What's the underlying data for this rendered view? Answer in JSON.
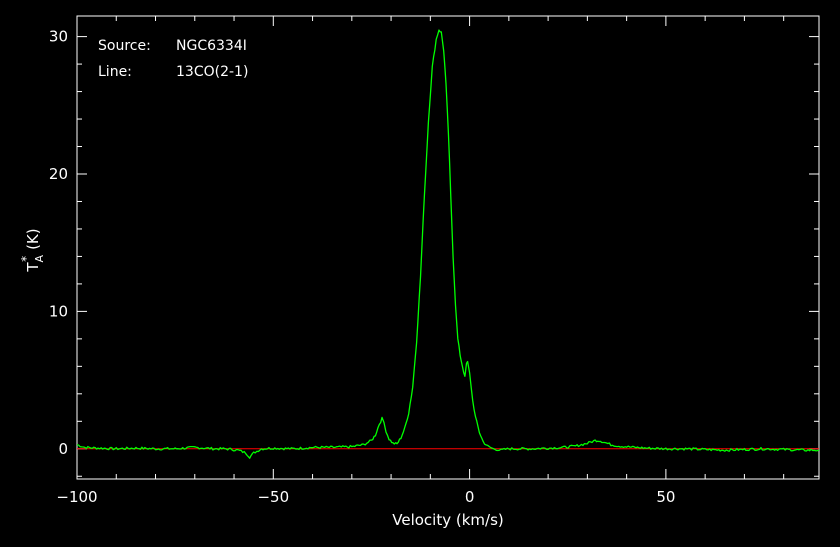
{
  "info": {
    "source_label": "Source:",
    "source_value": "NGC6334I",
    "line_label": "Line:",
    "line_value": "13CO(2-1)"
  },
  "colors": {
    "background": "#000000",
    "axes": "#ffffff",
    "spectrum": "#00ff00",
    "baseline": "#ff0000"
  },
  "chart_data": {
    "type": "line",
    "xlabel": "Velocity (km/s)",
    "ylabel_main": "T",
    "ylabel_sup": "*",
    "ylabel_sub": "A",
    "ylabel_unit": "(K)",
    "xlim": [
      -100,
      89
    ],
    "ylim": [
      -2.2,
      31.5
    ],
    "xticks": [
      -100,
      -50,
      0,
      50
    ],
    "xtick_labels": [
      "−100",
      "−50",
      "0",
      "50"
    ],
    "yticks": [
      0,
      10,
      20,
      30
    ],
    "ytick_labels": [
      "0",
      "10",
      "20",
      "30"
    ],
    "grid": false,
    "series": [
      {
        "x": [
          -100,
          -98,
          -95,
          -90,
          -85,
          -80,
          -75,
          -70,
          -65,
          -62,
          -59,
          -57,
          -56,
          -55,
          -53,
          -50,
          -45,
          -40,
          -35,
          -30,
          -27,
          -25,
          -24,
          -23,
          -22.3,
          -21.8,
          -21.3,
          -20.5,
          -19.5,
          -18.5,
          -17.5,
          -16.5,
          -15.5,
          -14.5,
          -13.5,
          -12.5,
          -11.5,
          -10.5,
          -9.5,
          -8.5,
          -7.8,
          -7.2,
          -6.6,
          -6,
          -5.4,
          -4.8,
          -4.2,
          -3.6,
          -3,
          -2.4,
          -1.8,
          -1.2,
          -0.8,
          -0.5,
          0,
          0.8,
          1.5,
          2.5,
          3.5,
          4.5,
          6,
          8,
          10,
          13,
          16,
          20,
          24,
          27,
          30,
          32,
          33,
          34,
          36,
          38,
          42,
          45,
          50,
          55,
          60,
          65,
          70,
          75,
          80,
          85,
          89
        ],
        "y": [
          0.3,
          0.1,
          0.05,
          0.0,
          0.05,
          0.0,
          0.0,
          0.1,
          0.0,
          0.0,
          -0.1,
          -0.3,
          -0.6,
          -0.3,
          0.0,
          0.05,
          0.0,
          0.1,
          0.1,
          0.15,
          0.3,
          0.6,
          1.0,
          1.8,
          2.2,
          1.9,
          1.3,
          0.7,
          0.4,
          0.35,
          0.8,
          1.5,
          2.6,
          4.5,
          7.8,
          12.5,
          18.5,
          23.8,
          27.8,
          29.8,
          30.5,
          30.3,
          29.0,
          26.5,
          23.0,
          18.5,
          14.0,
          10.5,
          8.0,
          6.8,
          6.0,
          5.2,
          6.2,
          6.3,
          5.5,
          3.5,
          2.3,
          1.2,
          0.5,
          0.2,
          0.0,
          -0.1,
          0.0,
          0.0,
          0.0,
          0.05,
          0.1,
          0.2,
          0.4,
          0.6,
          0.6,
          0.5,
          0.3,
          0.2,
          0.1,
          0.05,
          0.0,
          0.0,
          -0.05,
          -0.1,
          -0.05,
          0.0,
          -0.05,
          -0.1,
          -0.1
        ]
      }
    ],
    "baseline": 0
  }
}
